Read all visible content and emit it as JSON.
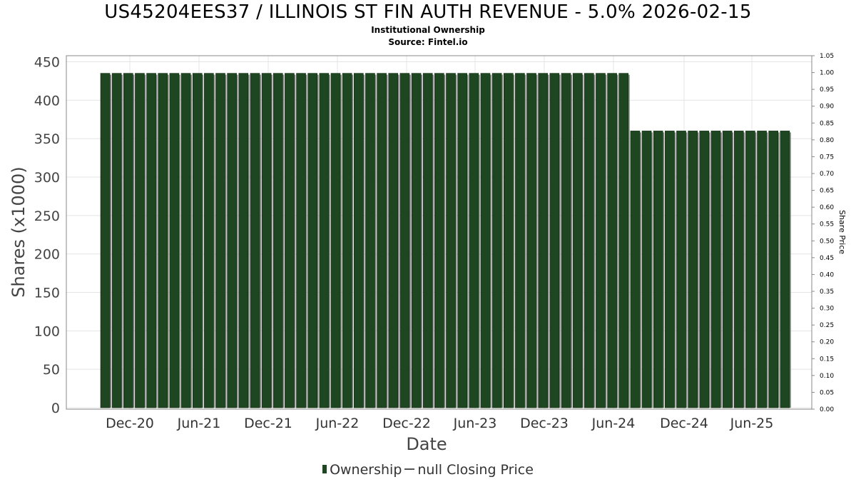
{
  "title": "US45204EES37 / ILLINOIS ST FIN AUTH REVENUE - 5.0% 2026-02-15",
  "subtitle": "Institutional Ownership",
  "source": "Source: Fintel.io",
  "legend": {
    "ownership": "Ownership",
    "closing_price": "null Closing Price"
  },
  "colors": {
    "bar": "#1e4620",
    "bar_shadow": "#8a8a8a",
    "grid": "#e4e4e4",
    "axis": "#888888"
  },
  "chart_data": {
    "type": "bar",
    "xlabel": "Date",
    "ylabel": "Shares (x1000)",
    "y2label": "Share Price",
    "ylim": [
      0,
      450
    ],
    "y2lim": [
      0,
      1.05
    ],
    "yticks": [
      0,
      50,
      100,
      150,
      200,
      250,
      300,
      350,
      400,
      450
    ],
    "y2ticks": [
      "0.00",
      "0.05",
      "0.10",
      "0.15",
      "0.20",
      "0.25",
      "0.30",
      "0.35",
      "0.40",
      "0.45",
      "0.50",
      "0.55",
      "0.60",
      "0.65",
      "0.70",
      "0.75",
      "0.80",
      "0.85",
      "0.90",
      "0.95",
      "1.00",
      "1.05"
    ],
    "xticks": [
      "Dec-20",
      "Jun-21",
      "Dec-21",
      "Jun-22",
      "Dec-22",
      "Jun-23",
      "Dec-23",
      "Jun-24",
      "Dec-24",
      "Jun-25"
    ],
    "grid": true,
    "legend_position": "bottom",
    "series": [
      {
        "name": "Ownership",
        "values": [
          435,
          435,
          435,
          435,
          435,
          435,
          435,
          435,
          435,
          435,
          435,
          435,
          435,
          435,
          435,
          435,
          435,
          435,
          435,
          435,
          435,
          435,
          435,
          435,
          435,
          435,
          435,
          435,
          435,
          435,
          435,
          435,
          435,
          435,
          435,
          435,
          435,
          435,
          435,
          435,
          435,
          435,
          435,
          435,
          435,
          435,
          360,
          360,
          360,
          360,
          360,
          360,
          360,
          360,
          360,
          360,
          360,
          360,
          360,
          360
        ]
      }
    ]
  }
}
